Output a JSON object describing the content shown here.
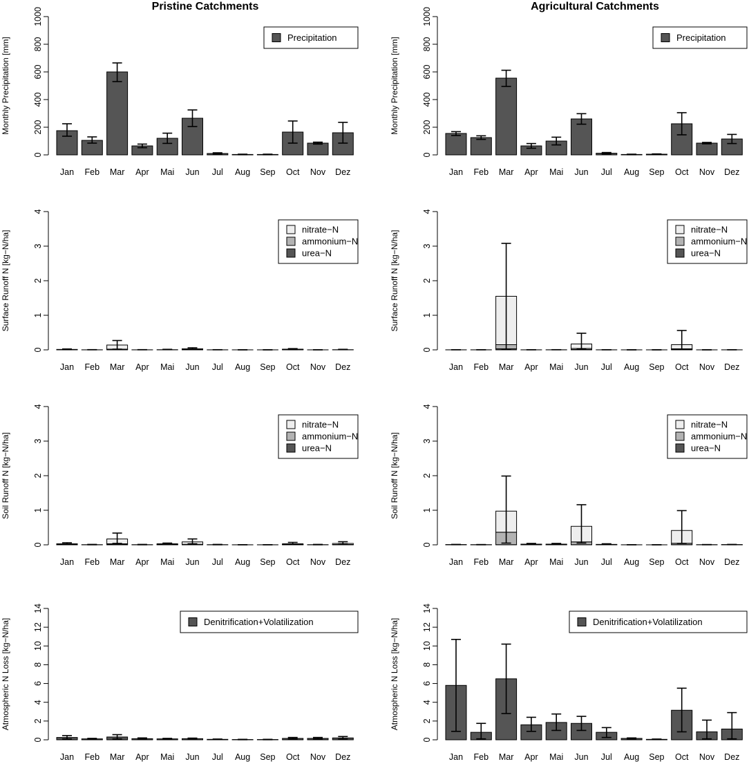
{
  "titles": {
    "left": "Pristine Catchments",
    "right": "Agricultural Catchments"
  },
  "colors": {
    "dark": "#555555",
    "mid": "#b3b3b3",
    "light": "#eeeeee",
    "axis": "#000000"
  },
  "chart_data": [
    {
      "id": "precip-pristine",
      "type": "bar",
      "ylabel": "Monthly Precipitation [mm]",
      "categories": [
        "Jan",
        "Feb",
        "Mar",
        "Apr",
        "Mai",
        "Jun",
        "Jul",
        "Aug",
        "Sep",
        "Oct",
        "Nov",
        "Dez"
      ],
      "ylim": [
        0,
        1000
      ],
      "yticks": [
        0,
        200,
        400,
        600,
        800,
        1000
      ],
      "legend": [
        "Precipitation"
      ],
      "legend_position": "top-right",
      "series": [
        {
          "name": "Precipitation",
          "color": "#555555",
          "values": [
            175,
            105,
            600,
            65,
            120,
            265,
            10,
            3,
            3,
            165,
            85,
            160
          ]
        }
      ],
      "error_upper": [
        225,
        130,
        665,
        78,
        157,
        325,
        15,
        5,
        5,
        245,
        92,
        235
      ],
      "error_lower": [
        135,
        85,
        530,
        52,
        83,
        205,
        5,
        1,
        1,
        85,
        78,
        85
      ]
    },
    {
      "id": "precip-agricultural",
      "type": "bar",
      "ylabel": "Monthly Precipitation [mm]",
      "categories": [
        "Jan",
        "Feb",
        "Mar",
        "Apr",
        "Mai",
        "Jun",
        "Jul",
        "Aug",
        "Sep",
        "Oct",
        "Nov",
        "Dez"
      ],
      "ylim": [
        0,
        1000
      ],
      "yticks": [
        0,
        200,
        400,
        600,
        800,
        1000
      ],
      "legend": [
        "Precipitation"
      ],
      "legend_position": "top-right",
      "series": [
        {
          "name": "Precipitation",
          "color": "#555555",
          "values": [
            155,
            125,
            555,
            65,
            100,
            260,
            12,
            3,
            5,
            225,
            85,
            115
          ]
        }
      ],
      "error_upper": [
        168,
        138,
        612,
        82,
        128,
        298,
        17,
        5,
        7,
        305,
        90,
        148
      ],
      "error_lower": [
        140,
        112,
        495,
        48,
        72,
        222,
        7,
        1,
        3,
        145,
        80,
        82
      ]
    },
    {
      "id": "surface-pristine",
      "type": "stacked_bar",
      "ylabel": "Surface Runoff N [kg−N/ha]",
      "categories": [
        "Jan",
        "Feb",
        "Mar",
        "Apr",
        "Mai",
        "Jun",
        "Jul",
        "Aug",
        "Sep",
        "Oct",
        "Nov",
        "Dez"
      ],
      "ylim": [
        0,
        4
      ],
      "yticks": [
        0,
        1,
        2,
        3,
        4
      ],
      "legend": [
        "nitrate−N",
        "ammonium−N",
        "urea−N"
      ],
      "legend_position": "top-right",
      "series": [
        {
          "name": "urea−N",
          "color": "#555555",
          "values": [
            0.005,
            0,
            0.01,
            0,
            0,
            0.005,
            0,
            0,
            0,
            0.005,
            0,
            0
          ]
        },
        {
          "name": "ammonium−N",
          "color": "#b3b3b3",
          "values": [
            0.003,
            0,
            0.01,
            0,
            0,
            0.005,
            0,
            0,
            0,
            0.005,
            0,
            0
          ]
        },
        {
          "name": "nitrate−N",
          "color": "#eeeeee",
          "values": [
            0.005,
            0.002,
            0.12,
            0.002,
            0.005,
            0.02,
            0.002,
            0.001,
            0.001,
            0.01,
            0.001,
            0.005
          ]
        }
      ],
      "error_upper": [
        0.025,
        0.006,
        0.27,
        0.006,
        0.015,
        0.06,
        0.005,
        0.002,
        0.002,
        0.035,
        0.003,
        0.015
      ],
      "error_lower": [
        0.005,
        0.002,
        0.02,
        0.002,
        0.005,
        0.01,
        0.002,
        0.001,
        0.001,
        0.005,
        0.001,
        0.005
      ]
    },
    {
      "id": "surface-agricultural",
      "type": "stacked_bar",
      "ylabel": "Surface Runoff N [kg−N/ha]",
      "categories": [
        "Jan",
        "Feb",
        "Mar",
        "Apr",
        "Mai",
        "Jun",
        "Jul",
        "Aug",
        "Sep",
        "Oct",
        "Nov",
        "Dez"
      ],
      "ylim": [
        0,
        4
      ],
      "yticks": [
        0,
        1,
        2,
        3,
        4
      ],
      "legend": [
        "nitrate−N",
        "ammonium−N",
        "urea−N"
      ],
      "legend_position": "top-right",
      "series": [
        {
          "name": "urea−N",
          "color": "#555555",
          "values": [
            0,
            0,
            0.03,
            0,
            0,
            0.01,
            0,
            0,
            0,
            0.01,
            0,
            0
          ]
        },
        {
          "name": "ammonium−N",
          "color": "#b3b3b3",
          "values": [
            0,
            0,
            0.12,
            0,
            0,
            0.03,
            0,
            0,
            0,
            0.02,
            0,
            0
          ]
        },
        {
          "name": "nitrate−N",
          "color": "#eeeeee",
          "values": [
            0.002,
            0.002,
            1.4,
            0.002,
            0.003,
            0.13,
            0.002,
            0.001,
            0.001,
            0.12,
            0.001,
            0.002
          ]
        }
      ],
      "error_upper": [
        0.004,
        0.004,
        3.08,
        0.004,
        0.005,
        0.48,
        0.004,
        0.002,
        0.002,
        0.56,
        0.002,
        0.004
      ],
      "error_lower": [
        0.002,
        0.002,
        0.02,
        0.002,
        0.003,
        0.02,
        0.002,
        0.001,
        0.001,
        0.02,
        0.001,
        0.002
      ]
    },
    {
      "id": "soil-pristine",
      "type": "stacked_bar",
      "ylabel": "Soil Runoff N [kg−N/ha]",
      "categories": [
        "Jan",
        "Feb",
        "Mar",
        "Apr",
        "Mai",
        "Jun",
        "Jul",
        "Aug",
        "Sep",
        "Oct",
        "Nov",
        "Dez"
      ],
      "ylim": [
        0,
        4
      ],
      "yticks": [
        0,
        1,
        2,
        3,
        4
      ],
      "legend": [
        "nitrate−N",
        "ammonium−N",
        "urea−N"
      ],
      "legend_position": "top-right",
      "series": [
        {
          "name": "urea−N",
          "color": "#555555",
          "values": [
            0.005,
            0,
            0.01,
            0,
            0.005,
            0.005,
            0,
            0,
            0,
            0.005,
            0,
            0.005
          ]
        },
        {
          "name": "ammonium−N",
          "color": "#b3b3b3",
          "values": [
            0.005,
            0,
            0.02,
            0,
            0.005,
            0.01,
            0,
            0,
            0,
            0.005,
            0,
            0.005
          ]
        },
        {
          "name": "nitrate−N",
          "color": "#eeeeee",
          "values": [
            0.02,
            0.005,
            0.14,
            0.005,
            0.02,
            0.07,
            0.005,
            0.002,
            0.002,
            0.02,
            0.005,
            0.03
          ]
        }
      ],
      "error_upper": [
        0.06,
        0.012,
        0.34,
        0.012,
        0.05,
        0.17,
        0.012,
        0.004,
        0.004,
        0.07,
        0.012,
        0.09
      ],
      "error_lower": [
        0.01,
        0.002,
        0.04,
        0.002,
        0.01,
        0.03,
        0.002,
        0.001,
        0.001,
        0.01,
        0.002,
        0.01
      ]
    },
    {
      "id": "soil-agricultural",
      "type": "stacked_bar",
      "ylabel": "Soil Runoff N [kg−N/ha]",
      "categories": [
        "Jan",
        "Feb",
        "Mar",
        "Apr",
        "Mai",
        "Jun",
        "Jul",
        "Aug",
        "Sep",
        "Oct",
        "Nov",
        "Dez"
      ],
      "ylim": [
        0,
        4
      ],
      "yticks": [
        0,
        1,
        2,
        3,
        4
      ],
      "legend": [
        "nitrate−N",
        "ammonium−N",
        "urea−N"
      ],
      "legend_position": "top-right",
      "series": [
        {
          "name": "urea−N",
          "color": "#555555",
          "values": [
            0,
            0,
            0.005,
            0,
            0,
            0.005,
            0,
            0,
            0,
            0.005,
            0,
            0
          ]
        },
        {
          "name": "ammonium−N",
          "color": "#b3b3b3",
          "values": [
            0.002,
            0.001,
            0.36,
            0.005,
            0.005,
            0.08,
            0.003,
            0,
            0,
            0.04,
            0.001,
            0.002
          ]
        },
        {
          "name": "nitrate−N",
          "color": "#eeeeee",
          "values": [
            0.006,
            0.004,
            0.61,
            0.015,
            0.015,
            0.45,
            0.01,
            0.002,
            0.001,
            0.37,
            0.004,
            0.006
          ]
        }
      ],
      "error_upper": [
        0.012,
        0.008,
        1.99,
        0.04,
        0.04,
        1.16,
        0.03,
        0.004,
        0.002,
        0.99,
        0.008,
        0.012
      ],
      "error_lower": [
        0.004,
        0.002,
        0.05,
        0.008,
        0.008,
        0.05,
        0.006,
        0.001,
        0.001,
        0.04,
        0.002,
        0.004
      ]
    },
    {
      "id": "atmos-pristine",
      "type": "bar",
      "ylabel": "Atmospheric N Loss [kg−N/ha]",
      "categories": [
        "Jan",
        "Feb",
        "Mar",
        "Apr",
        "Mai",
        "Jun",
        "Jul",
        "Aug",
        "Sep",
        "Oct",
        "Nov",
        "Dez"
      ],
      "ylim": [
        0,
        14
      ],
      "yticks": [
        0,
        2,
        4,
        6,
        8,
        10,
        12,
        14
      ],
      "legend": [
        "Denitrification+Volatilization"
      ],
      "legend_position": "top-right",
      "series": [
        {
          "name": "Denitrification+Volatilization",
          "color": "#555555",
          "values": [
            0.25,
            0.1,
            0.3,
            0.12,
            0.1,
            0.12,
            0.05,
            0.03,
            0.03,
            0.15,
            0.15,
            0.2
          ]
        }
      ],
      "error_upper": [
        0.45,
        0.15,
        0.55,
        0.2,
        0.15,
        0.18,
        0.08,
        0.05,
        0.05,
        0.25,
        0.25,
        0.35
      ],
      "error_lower": [
        0.08,
        0.05,
        0.08,
        0.05,
        0.05,
        0.06,
        0.03,
        0.01,
        0.01,
        0.06,
        0.06,
        0.06
      ]
    },
    {
      "id": "atmos-agricultural",
      "type": "bar",
      "ylabel": "Atmospheric N Loss [kg−N/ha]",
      "categories": [
        "Jan",
        "Feb",
        "Mar",
        "Apr",
        "Mai",
        "Jun",
        "Jul",
        "Aug",
        "Sep",
        "Oct",
        "Nov",
        "Dez"
      ],
      "ylim": [
        0,
        14
      ],
      "yticks": [
        0,
        2,
        4,
        6,
        8,
        10,
        12,
        14
      ],
      "legend": [
        "Denitrification+Volatilization"
      ],
      "legend_position": "top-right",
      "series": [
        {
          "name": "Denitrification+Volatilization",
          "color": "#555555",
          "values": [
            5.8,
            0.8,
            6.5,
            1.6,
            1.85,
            1.75,
            0.8,
            0.15,
            0.05,
            3.15,
            0.85,
            1.15
          ]
        }
      ],
      "error_upper": [
        10.7,
        1.75,
        10.2,
        2.4,
        2.75,
        2.5,
        1.3,
        0.2,
        0.08,
        5.5,
        2.1,
        2.9
      ],
      "error_lower": [
        0.9,
        0.1,
        2.8,
        0.9,
        1.0,
        1.0,
        0.25,
        0.05,
        0.02,
        0.85,
        0.1,
        0.1
      ]
    }
  ]
}
